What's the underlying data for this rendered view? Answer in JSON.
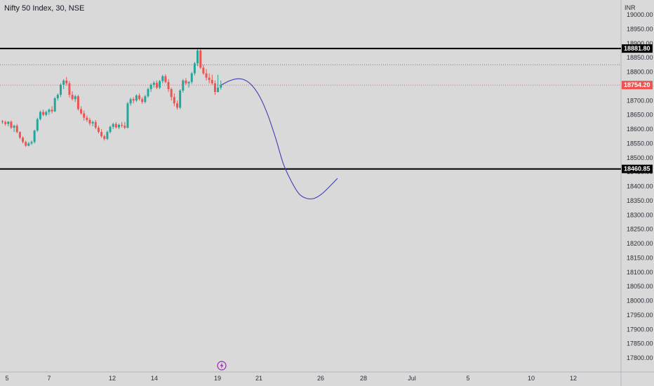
{
  "header": {
    "title": "Nifty 50 Index, 30, NSE",
    "currency": "INR"
  },
  "colors": {
    "background": "#d9d9d9",
    "up": "#26a69a",
    "down": "#ef5350",
    "horizontal_line": "#000000",
    "last_price": "#ef5350",
    "projection": "#3f3fb5",
    "icon": "#9c27b0"
  },
  "icons": {
    "bottom": "lightning-icon"
  },
  "chart_data": {
    "type": "candlestick",
    "title": "Nifty 50 Index, 30, NSE",
    "ylabel": "INR",
    "ylim": [
      17775,
      19025
    ],
    "y_ticks": [
      "19000.00",
      "18950.00",
      "18900.00",
      "18850.00",
      "18800.00",
      "18750.00",
      "18700.00",
      "18650.00",
      "18600.00",
      "18550.00",
      "18500.00",
      "18450.00",
      "18400.00",
      "18350.00",
      "18300.00",
      "18250.00",
      "18200.00",
      "18150.00",
      "18100.00",
      "18050.00",
      "18000.00",
      "17950.00",
      "17900.00",
      "17850.00",
      "17800.00"
    ],
    "x_ticks": [
      "5",
      "7",
      "12",
      "14",
      "19",
      "21",
      "26",
      "28",
      "Jul",
      "5",
      "10",
      "12"
    ],
    "horizontal_lines": [
      {
        "label": "18881.80",
        "value": 18881.8
      },
      {
        "label": "18460.85",
        "value": 18460.85
      }
    ],
    "dotted_line": 18825,
    "last_price": {
      "label": "18754.20",
      "value": 18754.2
    },
    "candles": [
      [
        18628,
        18632,
        18618,
        18625
      ],
      [
        18625,
        18630,
        18612,
        18618
      ],
      [
        18618,
        18628,
        18610,
        18626
      ],
      [
        18626,
        18630,
        18600,
        18605
      ],
      [
        18605,
        18615,
        18590,
        18612
      ],
      [
        18612,
        18618,
        18585,
        18590
      ],
      [
        18590,
        18592,
        18565,
        18570
      ],
      [
        18570,
        18575,
        18550,
        18555
      ],
      [
        18555,
        18560,
        18538,
        18542
      ],
      [
        18542,
        18555,
        18540,
        18550
      ],
      [
        18550,
        18560,
        18545,
        18555
      ],
      [
        18555,
        18598,
        18550,
        18595
      ],
      [
        18595,
        18640,
        18590,
        18635
      ],
      [
        18635,
        18665,
        18630,
        18660
      ],
      [
        18660,
        18668,
        18645,
        18650
      ],
      [
        18650,
        18665,
        18645,
        18660
      ],
      [
        18660,
        18672,
        18650,
        18668
      ],
      [
        18668,
        18680,
        18655,
        18662
      ],
      [
        18662,
        18712,
        18660,
        18708
      ],
      [
        18708,
        18725,
        18700,
        18720
      ],
      [
        18720,
        18760,
        18712,
        18755
      ],
      [
        18755,
        18775,
        18740,
        18770
      ],
      [
        18770,
        18782,
        18752,
        18760
      ],
      [
        18760,
        18768,
        18710,
        18720
      ],
      [
        18720,
        18732,
        18700,
        18705
      ],
      [
        18705,
        18720,
        18695,
        18715
      ],
      [
        18715,
        18720,
        18665,
        18670
      ],
      [
        18670,
        18680,
        18650,
        18655
      ],
      [
        18655,
        18665,
        18630,
        18640
      ],
      [
        18640,
        18648,
        18625,
        18632
      ],
      [
        18632,
        18640,
        18612,
        18620
      ],
      [
        18620,
        18630,
        18610,
        18625
      ],
      [
        18625,
        18632,
        18600,
        18605
      ],
      [
        18605,
        18612,
        18585,
        18590
      ],
      [
        18590,
        18600,
        18570,
        18575
      ],
      [
        18575,
        18580,
        18560,
        18566
      ],
      [
        18566,
        18595,
        18562,
        18590
      ],
      [
        18590,
        18612,
        18585,
        18608
      ],
      [
        18608,
        18622,
        18600,
        18618
      ],
      [
        18618,
        18625,
        18602,
        18606
      ],
      [
        18606,
        18620,
        18600,
        18615
      ],
      [
        18615,
        18625,
        18605,
        18612
      ],
      [
        18612,
        18625,
        18600,
        18605
      ],
      [
        18605,
        18695,
        18602,
        18690
      ],
      [
        18690,
        18710,
        18682,
        18705
      ],
      [
        18705,
        18712,
        18690,
        18700
      ],
      [
        18700,
        18722,
        18695,
        18718
      ],
      [
        18718,
        18725,
        18700,
        18705
      ],
      [
        18705,
        18712,
        18688,
        18695
      ],
      [
        18695,
        18720,
        18690,
        18715
      ],
      [
        18715,
        18745,
        18710,
        18740
      ],
      [
        18740,
        18760,
        18730,
        18755
      ],
      [
        18755,
        18768,
        18745,
        18762
      ],
      [
        18762,
        18770,
        18740,
        18745
      ],
      [
        18745,
        18772,
        18740,
        18768
      ],
      [
        18768,
        18790,
        18760,
        18785
      ],
      [
        18785,
        18792,
        18760,
        18765
      ],
      [
        18765,
        18775,
        18730,
        18740
      ],
      [
        18740,
        18745,
        18700,
        18712
      ],
      [
        18712,
        18725,
        18680,
        18690
      ],
      [
        18690,
        18700,
        18668,
        18675
      ],
      [
        18675,
        18740,
        18670,
        18735
      ],
      [
        18735,
        18775,
        18728,
        18770
      ],
      [
        18770,
        18778,
        18755,
        18760
      ],
      [
        18760,
        18768,
        18745,
        18765
      ],
      [
        18765,
        18800,
        18758,
        18795
      ],
      [
        18795,
        18835,
        18788,
        18830
      ],
      [
        18830,
        18883,
        18820,
        18875
      ],
      [
        18875,
        18885,
        18810,
        18815
      ],
      [
        18815,
        18825,
        18790,
        18795
      ],
      [
        18795,
        18810,
        18770,
        18780
      ],
      [
        18780,
        18795,
        18760,
        18772
      ],
      [
        18772,
        18790,
        18755,
        18760
      ],
      [
        18760,
        18770,
        18720,
        18730
      ],
      [
        18730,
        18790,
        18728,
        18745
      ],
      [
        18745,
        18770,
        18738,
        18754.2
      ]
    ],
    "projection_curve": [
      [
        0,
        18754
      ],
      [
        2,
        18768
      ],
      [
        4,
        18776
      ],
      [
        6,
        18772
      ],
      [
        8,
        18752
      ],
      [
        10,
        18712
      ],
      [
        12,
        18650
      ],
      [
        14,
        18570
      ],
      [
        16,
        18480
      ],
      [
        18,
        18420
      ],
      [
        20,
        18375
      ],
      [
        22,
        18358
      ],
      [
        24,
        18358
      ],
      [
        26,
        18374
      ],
      [
        28,
        18400
      ],
      [
        30,
        18428
      ]
    ]
  }
}
